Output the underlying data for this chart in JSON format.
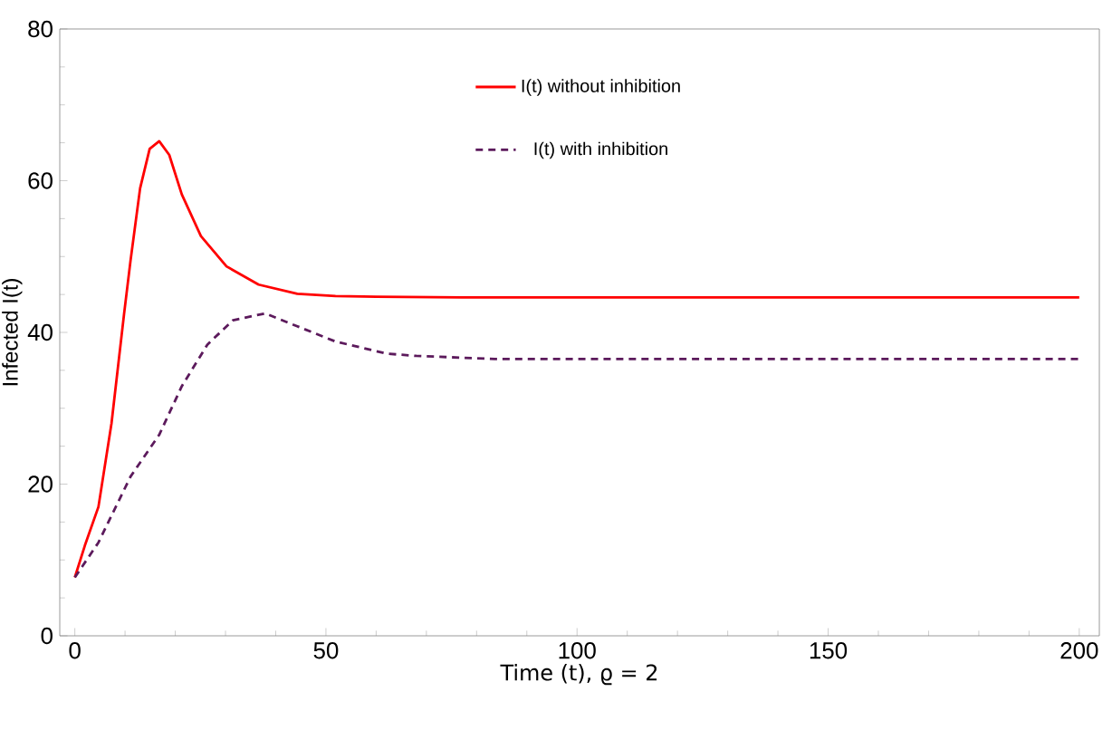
{
  "chart_data": {
    "type": "line",
    "xlabel": "Time (t), ϱ = 2",
    "ylabel": "Infected I(t)",
    "xlim": [
      -3,
      204
    ],
    "ylim": [
      0,
      80
    ],
    "xticks": [
      0,
      50,
      100,
      150,
      200
    ],
    "yticks": [
      0,
      20,
      40,
      60,
      80
    ],
    "grid": false,
    "legend": "top",
    "marker": "none",
    "series": [
      {
        "name": "I(t) without inhibition",
        "color": "#ff0000",
        "line_style": "solid",
        "x": [
          0,
          2,
          4.7,
          7.3,
          9.8,
          11.1,
          13,
          14.9,
          16.8,
          18.8,
          21.3,
          25.1,
          30.2,
          36.6,
          44.3,
          51.9,
          60,
          80,
          100,
          150,
          200
        ],
        "values": [
          7.7,
          11.9,
          17,
          28,
          42.4,
          49.5,
          59,
          64.2,
          65.2,
          63.4,
          58.2,
          52.7,
          48.7,
          46.3,
          45.1,
          44.8,
          44.7,
          44.6,
          44.6,
          44.6,
          44.6
        ]
      },
      {
        "name": "I(t) with inhibition",
        "color": "#5c1a5c",
        "line_style": "dashed",
        "x": [
          0,
          4.7,
          11.1,
          16.8,
          21.3,
          26.4,
          31.5,
          37.9,
          44.3,
          51.9,
          62.1,
          68,
          83.6,
          100,
          150,
          200
        ],
        "values": [
          7.7,
          12.3,
          21,
          26.5,
          32.9,
          38.4,
          41.6,
          42.5,
          40.8,
          38.8,
          37.2,
          36.9,
          36.5,
          36.5,
          36.5,
          36.5
        ]
      }
    ]
  }
}
